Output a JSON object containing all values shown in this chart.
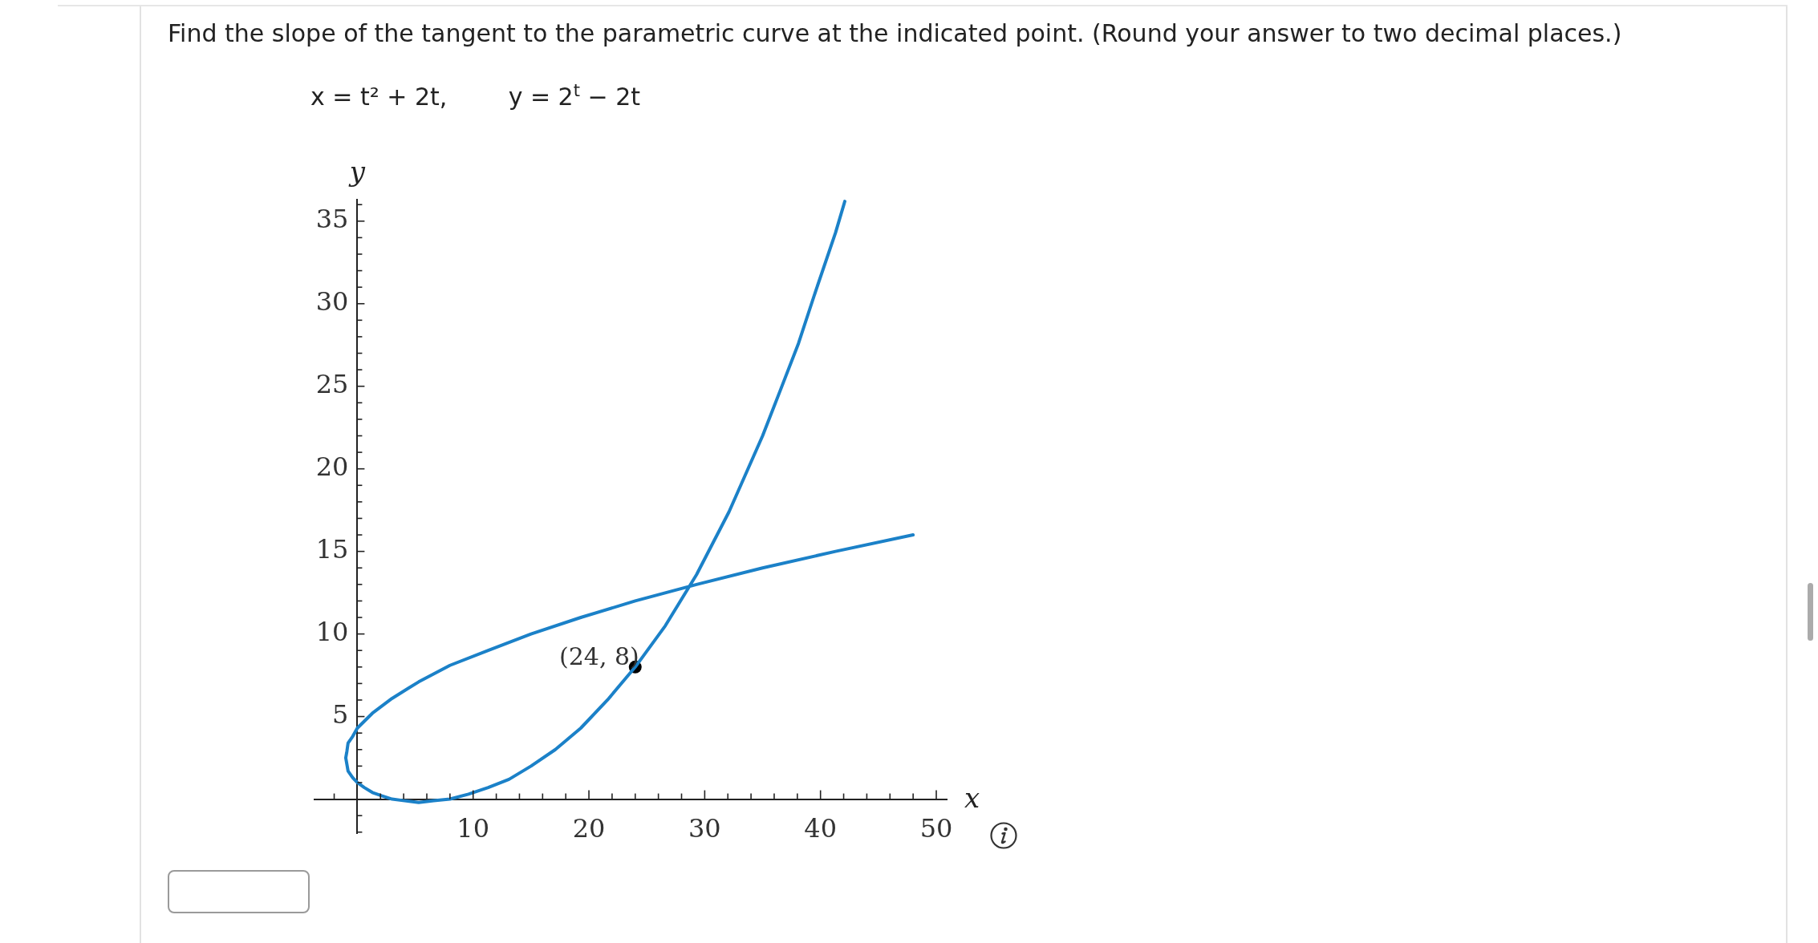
{
  "chart_data": {
    "type": "line",
    "title": "Find the slope of the tangent to the parametric curve at the indicated point. (Round your answer to two decimal places.)",
    "subtitle": "x = t² + 2t,        y = 2$^{t}$ − 2t",
    "xlabel": "x",
    "ylabel": "y",
    "annotations": [
      {
        "text": "(24, 8)",
        "x": 24,
        "y": 8
      }
    ],
    "xlim": [
      -3.7,
      50.9
    ],
    "ylim": [
      -2.1,
      36.3
    ],
    "xticks": [
      {
        "value": -2,
        "label": null
      },
      {
        "value": 2,
        "label": null
      },
      {
        "value": 4,
        "label": null
      },
      {
        "value": 6,
        "label": null
      },
      {
        "value": 8,
        "label": null
      },
      10,
      {
        "value": 12,
        "label": null
      },
      {
        "value": 14,
        "label": null
      },
      {
        "value": 16,
        "label": null
      },
      {
        "value": 18,
        "label": null
      },
      20,
      {
        "value": 22,
        "label": null
      },
      {
        "value": 24,
        "label": null
      },
      {
        "value": 26,
        "label": null
      },
      {
        "value": 28,
        "label": null
      },
      30,
      {
        "value": 32,
        "label": null
      },
      {
        "value": 34,
        "label": null
      },
      {
        "value": 36,
        "label": null
      },
      {
        "value": 38,
        "label": null
      },
      40,
      {
        "value": 42,
        "label": null
      },
      {
        "value": 44,
        "label": null
      },
      {
        "value": 46,
        "label": null
      },
      {
        "value": 48,
        "label": null
      },
      50
    ],
    "yticks": [
      {
        "value": -2,
        "label": null
      },
      {
        "value": -1,
        "label": null
      },
      {
        "value": 1,
        "label": null
      },
      {
        "value": 2,
        "label": null
      },
      {
        "value": 3,
        "label": null
      },
      {
        "value": 4,
        "label": null
      },
      5,
      {
        "value": 6,
        "label": null
      },
      {
        "value": 7,
        "label": null
      },
      {
        "value": 8,
        "label": null
      },
      {
        "value": 9,
        "label": null
      },
      10,
      {
        "value": 11,
        "label": null
      },
      {
        "value": 12,
        "label": null
      },
      {
        "value": 13,
        "label": null
      },
      {
        "value": 14,
        "label": null
      },
      15,
      {
        "value": 16,
        "label": null
      },
      {
        "value": 17,
        "label": null
      },
      {
        "value": 18,
        "label": null
      },
      {
        "value": 19,
        "label": null
      },
      20,
      {
        "value": 21,
        "label": null
      },
      {
        "value": 22,
        "label": null
      },
      {
        "value": 23,
        "label": null
      },
      {
        "value": 24,
        "label": null
      },
      25,
      {
        "value": 26,
        "label": null
      },
      {
        "value": 27,
        "label": null
      },
      {
        "value": 28,
        "label": null
      },
      {
        "value": 29,
        "label": null
      },
      30,
      {
        "value": 31,
        "label": null
      },
      {
        "value": 32,
        "label": null
      },
      {
        "value": 33,
        "label": null
      },
      {
        "value": 34,
        "label": null
      },
      35,
      {
        "value": 36,
        "label": null
      }
    ],
    "series": [
      {
        "color": "#1b81c8",
        "marker": "none",
        "x": [
          48,
          41.3,
          35,
          29.3,
          24,
          19.3,
          15,
          11.3,
          8,
          5.3,
          3,
          1.3,
          0,
          -0.4,
          -0.8,
          -0.9,
          -1,
          -0.9,
          -0.8,
          -0.4,
          0,
          0.6,
          1.3,
          2.1,
          3,
          4.1,
          5.3,
          6.6,
          8,
          9.6,
          11.3,
          13.1,
          15,
          17.1,
          19.3,
          21.6,
          24,
          26.6,
          29.3,
          32.1,
          35,
          36.5,
          38.1,
          39.6,
          41.3,
          42.1
        ],
        "values": [
          16,
          15,
          14,
          13,
          12,
          11,
          10,
          9,
          8.1,
          7.1,
          6.1,
          5.2,
          4.3,
          3.8,
          3.4,
          2.9,
          2.5,
          2.1,
          1.7,
          1.3,
          1,
          0.7,
          0.4,
          0.2,
          0,
          -0.1,
          -0.2,
          -0.1,
          0,
          0.3,
          0.7,
          1.2,
          2,
          3,
          4.3,
          6,
          8,
          10.5,
          13.6,
          17.4,
          22,
          24.7,
          27.6,
          30.8,
          34.3,
          36.2
        ]
      },
      {
        "type": "scatter",
        "color": "#000000",
        "marker": "circle",
        "x": [
          24
        ],
        "values": [
          8
        ]
      }
    ]
  }
}
